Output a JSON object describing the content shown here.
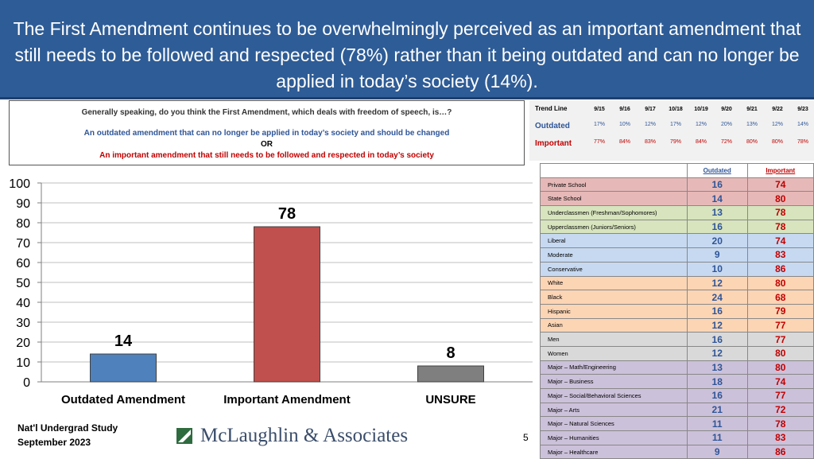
{
  "header": {
    "title": "The First Amendment continues to be overwhelmingly perceived as an important amendment that still needs to be followed and respected (78%) rather than it being outdated and can no longer be applied in today’s society (14%)."
  },
  "question": {
    "text": "Generally speaking, do you think the First Amendment, which deals with freedom of speech, is…?",
    "option1": "An outdated amendment that can no longer be applied in today’s society and should be changed",
    "or": "OR",
    "option2": "An important amendment that still needs to be followed and respected in today’s society"
  },
  "trend": {
    "title": "Trend Line",
    "dates": [
      "9/15",
      "9/16",
      "9/17",
      "10/18",
      "10/19",
      "9/20",
      "9/21",
      "9/22",
      "9/23"
    ],
    "rows": [
      {
        "label": "Outdated",
        "values": [
          "17%",
          "10%",
          "12%",
          "17%",
          "12%",
          "20%",
          "13%",
          "12%",
          "14%"
        ]
      },
      {
        "label": "Important",
        "values": [
          "77%",
          "84%",
          "83%",
          "79%",
          "84%",
          "72%",
          "80%",
          "80%",
          "78%"
        ]
      }
    ]
  },
  "chart_data": {
    "type": "bar",
    "categories": [
      "Outdated Amendment",
      "Important Amendment",
      "UNSURE"
    ],
    "values": [
      14,
      78,
      8
    ],
    "value_labels": [
      "14",
      "78",
      "8"
    ],
    "ylim": [
      0,
      100
    ],
    "yticks": [
      "0",
      "10",
      "20",
      "30",
      "40",
      "50",
      "60",
      "70",
      "80",
      "90",
      "100"
    ],
    "bar_colors": [
      "#4f81bd",
      "#c0504d",
      "#7f7f7f"
    ],
    "grid": true
  },
  "segments": {
    "headers": {
      "outdated": "Outdated",
      "important": "Important"
    },
    "rows": [
      {
        "label": "Private School",
        "outdated": "16",
        "important": "74",
        "color": "#e6b9b8"
      },
      {
        "label": "State School",
        "outdated": "14",
        "important": "80",
        "color": "#e6b9b8"
      },
      {
        "label": "Underclassmen (Freshman/Sophomores)",
        "outdated": "13",
        "important": "78",
        "color": "#d7e4bd"
      },
      {
        "label": "Upperclassmen (Juniors/Seniors)",
        "outdated": "16",
        "important": "78",
        "color": "#d7e4bd"
      },
      {
        "label": "Liberal",
        "outdated": "20",
        "important": "74",
        "color": "#c6d9f1"
      },
      {
        "label": "Moderate",
        "outdated": "9",
        "important": "83",
        "color": "#c6d9f1"
      },
      {
        "label": "Conservative",
        "outdated": "10",
        "important": "86",
        "color": "#c6d9f1"
      },
      {
        "label": "White",
        "outdated": "12",
        "important": "80",
        "color": "#fcd5b5"
      },
      {
        "label": "Black",
        "outdated": "24",
        "important": "68",
        "color": "#fcd5b5"
      },
      {
        "label": "Hispanic",
        "outdated": "16",
        "important": "79",
        "color": "#fcd5b5"
      },
      {
        "label": "Asian",
        "outdated": "12",
        "important": "77",
        "color": "#fcd5b5"
      },
      {
        "label": "Men",
        "outdated": "16",
        "important": "77",
        "color": "#d9d9d9"
      },
      {
        "label": "Women",
        "outdated": "12",
        "important": "80",
        "color": "#d9d9d9"
      },
      {
        "label": "Major – Math/Engineering",
        "outdated": "13",
        "important": "80",
        "color": "#ccc1da"
      },
      {
        "label": "Major – Business",
        "outdated": "18",
        "important": "74",
        "color": "#ccc1da"
      },
      {
        "label": "Major – Social/Behavioral Sciences",
        "outdated": "16",
        "important": "77",
        "color": "#ccc1da"
      },
      {
        "label": "Major – Arts",
        "outdated": "21",
        "important": "72",
        "color": "#ccc1da"
      },
      {
        "label": "Major – Natural Sciences",
        "outdated": "11",
        "important": "78",
        "color": "#ccc1da"
      },
      {
        "label": "Major – Humanities",
        "outdated": "11",
        "important": "83",
        "color": "#ccc1da"
      },
      {
        "label": "Major – Healthcare",
        "outdated": "9",
        "important": "86",
        "color": "#ccc1da"
      }
    ]
  },
  "footer": {
    "study_line1": "Nat'l Undergrad Study",
    "study_line2": "September 2023",
    "logo_text": "McLaughlin & Associates",
    "page_number": "5"
  },
  "colors": {
    "header_bg": "#2e5c96",
    "outdated_text": "#2f5597",
    "important_text": "#c00000"
  }
}
